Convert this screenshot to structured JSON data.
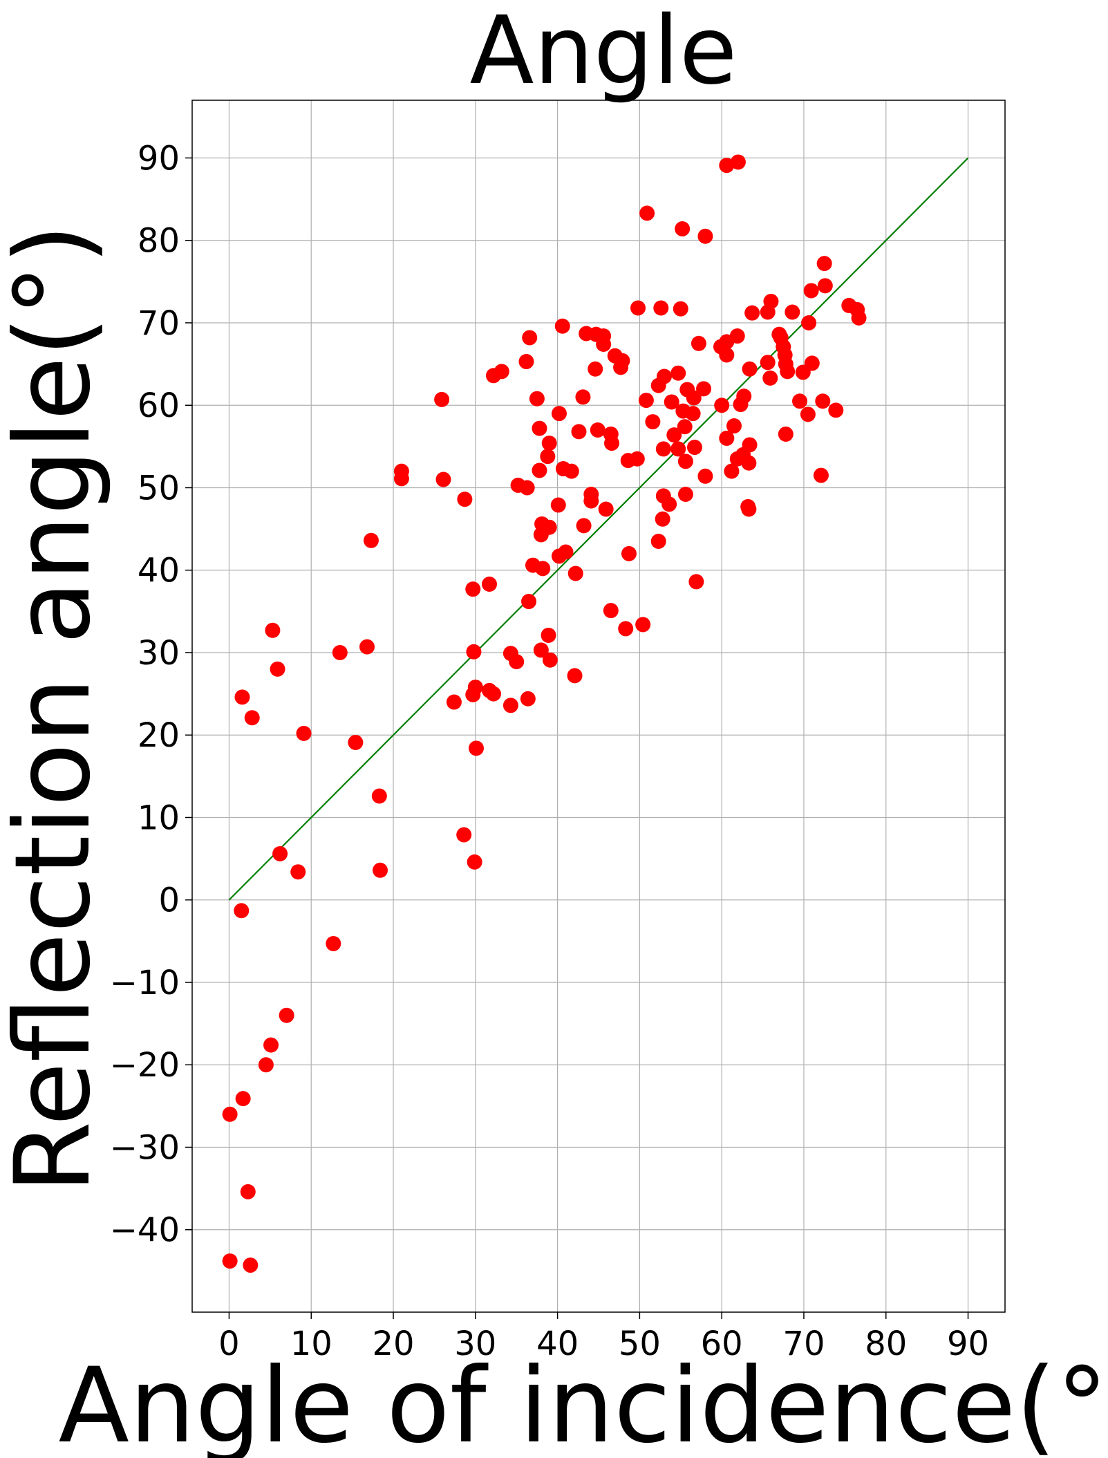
{
  "chart_data": {
    "type": "scatter",
    "title": "Angle",
    "xlabel": "Angle of incidence(°)",
    "ylabel": "Reflection angle(°)",
    "xlim": [
      -4.5,
      94.5
    ],
    "ylim": [
      -50,
      97
    ],
    "xticks": [
      0,
      10,
      20,
      30,
      40,
      50,
      60,
      70,
      80,
      90
    ],
    "xtick_labels": [
      "0",
      "10",
      "20",
      "30",
      "40",
      "50",
      "60",
      "70",
      "80",
      "90"
    ],
    "yticks": [
      -40,
      -30,
      -20,
      -10,
      0,
      10,
      20,
      30,
      40,
      50,
      60,
      70,
      80,
      90
    ],
    "ytick_labels": [
      "−40",
      "−30",
      "−20",
      "−10",
      "0",
      "10",
      "20",
      "30",
      "40",
      "50",
      "60",
      "70",
      "80",
      "90"
    ],
    "grid": true,
    "point_color": "#ff0000",
    "line_color": "#007f00",
    "reference_line": {
      "x": [
        0,
        90
      ],
      "y": [
        0,
        90
      ]
    },
    "points": [
      [
        0.1,
        -43.8
      ],
      [
        2.6,
        -44.3
      ],
      [
        2.3,
        -35.4
      ],
      [
        0.1,
        -26.0
      ],
      [
        1.7,
        -24.1
      ],
      [
        4.5,
        -20.0
      ],
      [
        5.1,
        -17.6
      ],
      [
        7.0,
        -14.0
      ],
      [
        12.7,
        -5.3
      ],
      [
        1.5,
        -1.3
      ],
      [
        6.2,
        5.6
      ],
      [
        8.4,
        3.4
      ],
      [
        18.4,
        3.6
      ],
      [
        18.3,
        12.6
      ],
      [
        9.1,
        20.2
      ],
      [
        15.4,
        19.1
      ],
      [
        2.8,
        22.1
      ],
      [
        1.6,
        24.6
      ],
      [
        5.9,
        28.0
      ],
      [
        5.3,
        32.7
      ],
      [
        13.5,
        30.0
      ],
      [
        16.8,
        30.7
      ],
      [
        17.3,
        43.6
      ],
      [
        21.0,
        51.1
      ],
      [
        21.0,
        52.0
      ],
      [
        26.1,
        51.0
      ],
      [
        28.7,
        48.6
      ],
      [
        25.9,
        60.7
      ],
      [
        28.6,
        7.9
      ],
      [
        29.9,
        4.6
      ],
      [
        30.1,
        18.4
      ],
      [
        29.7,
        24.9
      ],
      [
        30.0,
        25.8
      ],
      [
        27.4,
        24.0
      ],
      [
        31.7,
        25.4
      ],
      [
        32.2,
        25.0
      ],
      [
        34.3,
        23.6
      ],
      [
        36.4,
        24.4
      ],
      [
        29.8,
        30.1
      ],
      [
        29.7,
        37.7
      ],
      [
        31.7,
        38.3
      ],
      [
        34.3,
        29.9
      ],
      [
        35.0,
        28.9
      ],
      [
        38.0,
        30.3
      ],
      [
        39.1,
        29.1
      ],
      [
        38.9,
        32.1
      ],
      [
        42.1,
        27.2
      ],
      [
        36.5,
        36.2
      ],
      [
        37.0,
        40.6
      ],
      [
        38.2,
        40.2
      ],
      [
        40.2,
        41.7
      ],
      [
        41.0,
        42.2
      ],
      [
        42.2,
        39.6
      ],
      [
        38.0,
        44.3
      ],
      [
        38.1,
        45.6
      ],
      [
        39.0,
        45.2
      ],
      [
        40.1,
        47.9
      ],
      [
        43.2,
        45.4
      ],
      [
        44.1,
        48.4
      ],
      [
        44.1,
        49.2
      ],
      [
        45.9,
        47.4
      ],
      [
        46.5,
        35.1
      ],
      [
        48.3,
        32.9
      ],
      [
        50.4,
        33.4
      ],
      [
        48.7,
        42.0
      ],
      [
        52.3,
        43.5
      ],
      [
        53.6,
        48.0
      ],
      [
        52.8,
        46.2
      ],
      [
        52.9,
        49.0
      ],
      [
        56.9,
        38.6
      ],
      [
        35.2,
        50.3
      ],
      [
        36.3,
        50.0
      ],
      [
        37.8,
        52.1
      ],
      [
        38.8,
        53.8
      ],
      [
        40.7,
        52.3
      ],
      [
        41.7,
        52.0
      ],
      [
        39.0,
        55.4
      ],
      [
        37.8,
        57.2
      ],
      [
        40.2,
        59.0
      ],
      [
        42.6,
        56.8
      ],
      [
        44.9,
        57.0
      ],
      [
        46.5,
        56.5
      ],
      [
        46.6,
        55.4
      ],
      [
        48.6,
        53.3
      ],
      [
        49.7,
        53.5
      ],
      [
        51.6,
        58.0
      ],
      [
        52.9,
        54.7
      ],
      [
        54.2,
        56.4
      ],
      [
        54.7,
        54.7
      ],
      [
        55.6,
        53.2
      ],
      [
        55.5,
        57.4
      ],
      [
        56.7,
        54.9
      ],
      [
        56.5,
        59.0
      ],
      [
        55.6,
        49.2
      ],
      [
        37.5,
        60.8
      ],
      [
        43.1,
        61.0
      ],
      [
        50.8,
        60.6
      ],
      [
        52.3,
        62.4
      ],
      [
        53.0,
        63.5
      ],
      [
        54.7,
        63.9
      ],
      [
        53.9,
        60.4
      ],
      [
        55.3,
        59.3
      ],
      [
        55.8,
        61.9
      ],
      [
        56.6,
        60.9
      ],
      [
        57.8,
        62.0
      ],
      [
        58.0,
        51.4
      ],
      [
        60.6,
        56.0
      ],
      [
        61.2,
        52.0
      ],
      [
        61.5,
        57.5
      ],
      [
        61.9,
        53.5
      ],
      [
        62.6,
        54.0
      ],
      [
        63.3,
        53.0
      ],
      [
        63.4,
        55.2
      ],
      [
        63.2,
        47.7
      ],
      [
        63.3,
        47.4
      ],
      [
        60.0,
        60.0
      ],
      [
        62.3,
        60.1
      ],
      [
        62.7,
        61.1
      ],
      [
        63.4,
        64.4
      ],
      [
        65.6,
        65.2
      ],
      [
        65.9,
        63.3
      ],
      [
        67.8,
        56.5
      ],
      [
        67.8,
        65.0
      ],
      [
        68.0,
        64.1
      ],
      [
        69.5,
        60.5
      ],
      [
        70.5,
        58.9
      ],
      [
        71.0,
        65.1
      ],
      [
        72.3,
        60.5
      ],
      [
        73.9,
        59.4
      ],
      [
        72.1,
        51.5
      ],
      [
        69.9,
        64.0
      ],
      [
        67.2,
        68.2
      ],
      [
        67.5,
        67.1
      ],
      [
        67.7,
        66.1
      ],
      [
        68.6,
        71.3
      ],
      [
        70.6,
        70.0
      ],
      [
        70.9,
        73.9
      ],
      [
        72.6,
        74.5
      ],
      [
        72.5,
        77.2
      ],
      [
        75.5,
        72.1
      ],
      [
        76.5,
        71.6
      ],
      [
        76.7,
        70.6
      ],
      [
        63.7,
        71.2
      ],
      [
        65.6,
        71.3
      ],
      [
        66.0,
        72.6
      ],
      [
        67.0,
        68.6
      ],
      [
        59.9,
        67.1
      ],
      [
        60.6,
        67.7
      ],
      [
        61.9,
        68.4
      ],
      [
        60.6,
        66.1
      ],
      [
        57.2,
        67.5
      ],
      [
        49.8,
        71.8
      ],
      [
        52.6,
        71.8
      ],
      [
        55.0,
        71.7
      ],
      [
        40.6,
        69.6
      ],
      [
        43.5,
        68.7
      ],
      [
        44.7,
        68.6
      ],
      [
        45.6,
        68.4
      ],
      [
        45.6,
        67.4
      ],
      [
        47.0,
        66.0
      ],
      [
        47.9,
        65.4
      ],
      [
        47.7,
        64.6
      ],
      [
        44.6,
        64.4
      ],
      [
        36.6,
        68.2
      ],
      [
        36.2,
        65.3
      ],
      [
        32.2,
        63.6
      ],
      [
        33.2,
        64.1
      ],
      [
        50.9,
        83.3
      ],
      [
        55.2,
        81.4
      ],
      [
        58.0,
        80.5
      ],
      [
        60.6,
        89.1
      ],
      [
        62.0,
        89.5
      ]
    ]
  }
}
